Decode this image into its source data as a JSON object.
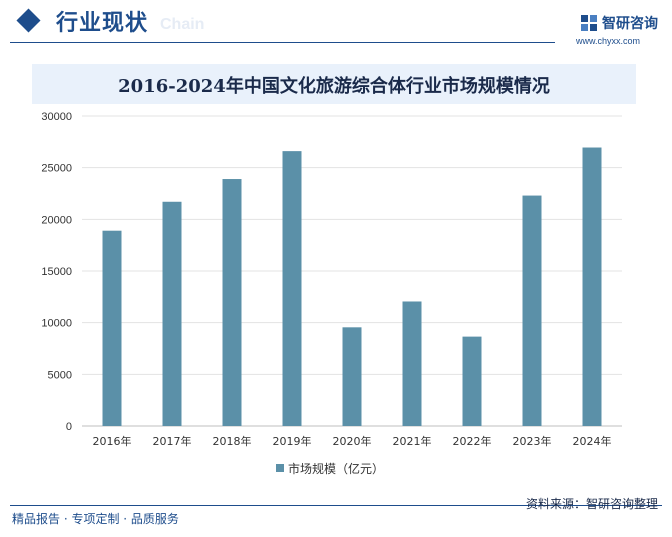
{
  "header": {
    "title": "行业现状",
    "subtitle": "Chain"
  },
  "brand": {
    "name": "智研咨询",
    "url": "www.chyxx.com"
  },
  "chart_data": {
    "type": "bar",
    "title": "2016-2024年中国文化旅游综合体行业市场规模情况",
    "categories": [
      "2016年",
      "2017年",
      "2018年",
      "2019年",
      "2020年",
      "2021年",
      "2022年",
      "2023年",
      "2024年"
    ],
    "series": [
      {
        "name": "市场规模（亿元）",
        "values": [
          18900,
          21700,
          23900,
          26600,
          9550,
          12050,
          8650,
          22300,
          26950
        ]
      }
    ],
    "xlabel": "",
    "ylabel": "",
    "ylim": [
      0,
      30000
    ],
    "yticks": [
      0,
      5000,
      10000,
      15000,
      20000,
      25000,
      30000
    ],
    "grid": true,
    "legend": "bottom",
    "bar_color": "#5b90a8"
  },
  "footer": {
    "left": "精品报告 · 专项定制 · 品质服务",
    "source": "资料来源：智研咨询整理"
  }
}
